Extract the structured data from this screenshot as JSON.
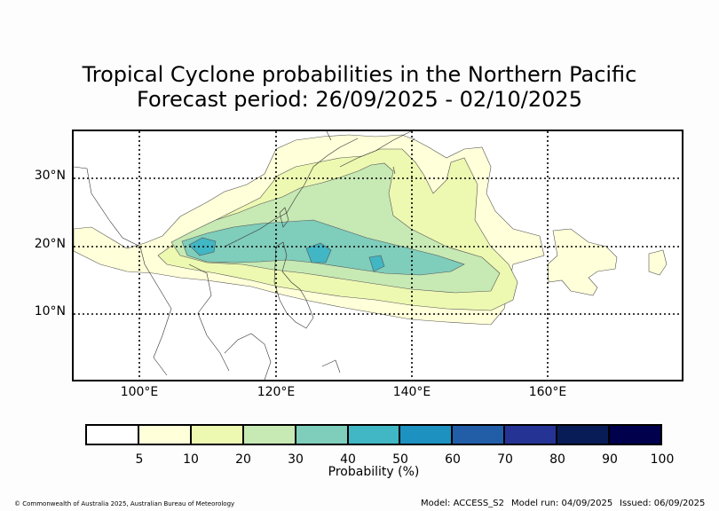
{
  "title": {
    "line1": "Tropical Cyclone probabilities in the Northern Pacific",
    "line2": "Forecast period: 26/09/2025 - 02/10/2025"
  },
  "map": {
    "lat_labels": [
      "30°N",
      "20°N",
      "10°N"
    ],
    "lon_labels": [
      "100°E",
      "120°E",
      "140°E",
      "160°E"
    ],
    "lat_values": [
      30,
      20,
      10
    ],
    "lon_values": [
      100,
      120,
      140,
      160
    ],
    "lon_range": [
      90,
      180
    ],
    "lat_range": [
      0,
      37
    ],
    "gridlines": "dotted"
  },
  "colorbar": {
    "title": "Probability (%)",
    "tick_labels": [
      "5",
      "10",
      "20",
      "30",
      "40",
      "50",
      "60",
      "70",
      "80",
      "90",
      "100"
    ],
    "colors": [
      "#ffffff",
      "#ffffd9",
      "#edf8b1",
      "#c7e9b4",
      "#7fcdbb",
      "#41b6c4",
      "#1d91c0",
      "#225ea8",
      "#253494",
      "#081d58",
      "#00004d"
    ]
  },
  "footer": {
    "copyright": "© Commonwealth of Australia 2025, Australian Bureau of Meteorology",
    "model": "Model: ACCESS_S2",
    "model_run": "Model run: 04/09/2025",
    "issued": "Issued: 06/09/2025"
  }
}
